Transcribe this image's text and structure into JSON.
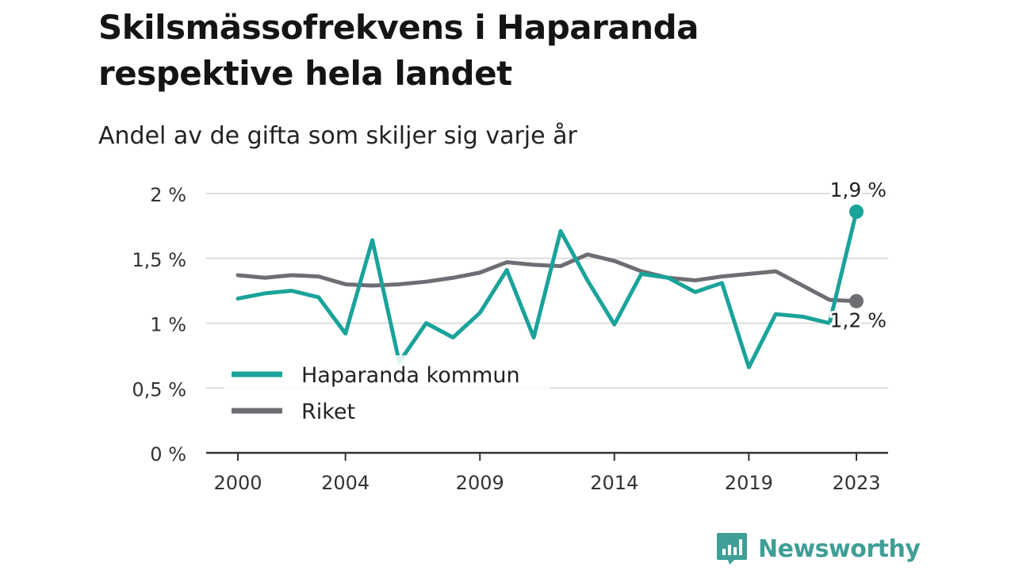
{
  "title": "Skilsmässofrekvens i Haparanda respektive hela landet",
  "subtitle": "Andel av de gifta som skiljer sig varje år",
  "brand": {
    "name": "Newsworthy",
    "icon": "newsworthy-logo-icon"
  },
  "colors": {
    "haparanda": "#1aa39a",
    "riket": "#6e6d74",
    "grid": "#dcdcdc",
    "axis": "#333333"
  },
  "chart_data": {
    "type": "line",
    "x": [
      2000,
      2001,
      2002,
      2003,
      2004,
      2005,
      2006,
      2007,
      2008,
      2009,
      2010,
      2011,
      2012,
      2013,
      2014,
      2015,
      2016,
      2017,
      2018,
      2019,
      2020,
      2021,
      2022,
      2023
    ],
    "x_ticks": [
      2000,
      2004,
      2009,
      2014,
      2019,
      2023
    ],
    "x_tick_labels": [
      "2000",
      "2004",
      "2009",
      "2014",
      "2019",
      "2023"
    ],
    "ylim": [
      0,
      2
    ],
    "y_ticks": [
      0,
      0.5,
      1,
      1.5,
      2
    ],
    "y_tick_labels": [
      "0 %",
      "0,5 %",
      "1 %",
      "1,5 %",
      "2 %"
    ],
    "grid": true,
    "legend_position": "lower-left",
    "series": [
      {
        "name": "Haparanda kommun",
        "values": [
          1.19,
          1.23,
          1.25,
          1.2,
          0.92,
          1.64,
          0.7,
          1.0,
          0.89,
          1.08,
          1.41,
          0.89,
          1.71,
          1.33,
          0.99,
          1.38,
          1.35,
          1.24,
          1.31,
          0.66,
          1.07,
          1.05,
          1.0,
          1.86
        ],
        "end_label": "1,9 %"
      },
      {
        "name": "Riket",
        "values": [
          1.37,
          1.35,
          1.37,
          1.36,
          1.3,
          1.29,
          1.3,
          1.32,
          1.35,
          1.39,
          1.47,
          1.45,
          1.44,
          1.53,
          1.48,
          1.4,
          1.35,
          1.33,
          1.36,
          1.38,
          1.4,
          1.29,
          1.18,
          1.17
        ],
        "end_label": "1,2 %"
      }
    ]
  }
}
